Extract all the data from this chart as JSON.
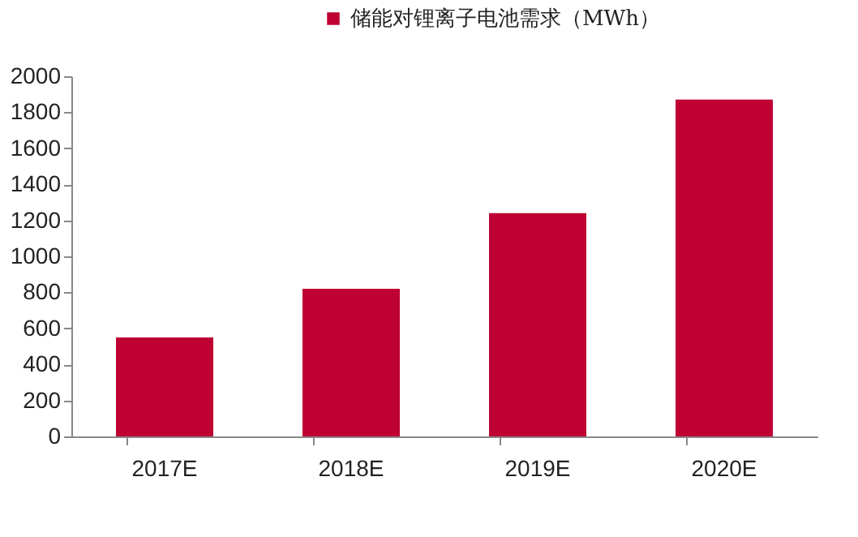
{
  "chart_data": {
    "type": "bar",
    "categories": [
      "2017E",
      "2018E",
      "2019E",
      "2020E"
    ],
    "series": [
      {
        "name": "储能对锂离子电池需求（MWh）",
        "color": "#be0032",
        "values": [
          550,
          820,
          1240,
          1870
        ]
      }
    ],
    "ylim": [
      0,
      2000
    ],
    "yticks": [
      0,
      200,
      400,
      600,
      800,
      1000,
      1200,
      1400,
      1600,
      1800,
      2000
    ],
    "grid": false,
    "legend": "top"
  }
}
